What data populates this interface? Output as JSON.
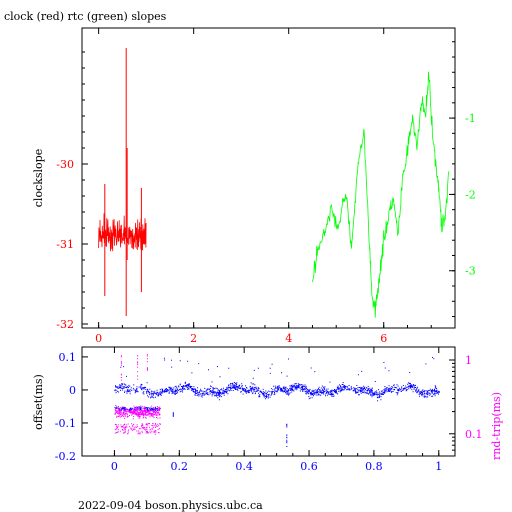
{
  "footer": "2022-09-04 boson.physics.ubc.ca",
  "colors": {
    "clock": "#ff0000",
    "rtc": "#00ff00",
    "offset": "#0000ff",
    "rndtrip": "#ff00ff",
    "frame": "#000000"
  },
  "chart_data": [
    {
      "type": "line",
      "title": "clock (red) rtc (green) slopes",
      "ylabel": "clockslope",
      "xlim": [
        -0.35,
        7.5
      ],
      "ylim": [
        -32.05,
        -28.3
      ],
      "xticks": [
        0,
        2,
        4,
        6
      ],
      "xtick_labels": [
        "0",
        "2",
        "4",
        "6"
      ],
      "yticks": [
        -30,
        -31,
        -32
      ],
      "ytick_labels": [
        "-30",
        "-31",
        "-32"
      ],
      "y2lim": [
        -3.75,
        0.18
      ],
      "y2ticks": [
        -1,
        -2,
        -3
      ],
      "y2tick_labels": [
        "-1",
        "-2",
        "-3"
      ],
      "grid": false,
      "series": [
        {
          "color": "#ff0000",
          "axis": "left",
          "x_range": [
            0.0,
            1.0
          ],
          "baseline": -30.9,
          "spikes": [
            [
              0.58,
              -28.55,
              -31.9
            ],
            [
              0.13,
              -30.25,
              -31.65
            ],
            [
              0.9,
              -30.3,
              -31.6
            ],
            [
              0.6,
              -29.8,
              -31.2
            ]
          ]
        },
        {
          "color": "#00ff00",
          "axis": "right",
          "x": [
            4.5,
            4.62,
            4.75,
            4.9,
            5.05,
            5.2,
            5.32,
            5.45,
            5.58,
            5.68,
            5.75,
            5.82,
            5.9,
            6.0,
            6.1,
            6.2,
            6.3,
            6.4,
            6.5,
            6.6,
            6.7,
            6.8,
            6.88,
            6.95,
            7.05,
            7.15,
            7.22,
            7.3,
            7.38
          ],
          "y": [
            -3.1,
            -2.7,
            -2.5,
            -2.2,
            -2.45,
            -1.95,
            -2.7,
            -1.7,
            -1.15,
            -2.4,
            -3.3,
            -3.55,
            -3.1,
            -2.6,
            -2.3,
            -2.05,
            -2.55,
            -1.8,
            -1.45,
            -1.0,
            -1.35,
            -0.8,
            -0.95,
            -0.45,
            -1.35,
            -1.85,
            -2.45,
            -2.25,
            -1.6
          ]
        }
      ]
    },
    {
      "type": "scatter",
      "ylabel": "offset(ms)",
      "y2label": "rnd-trip(ms)",
      "xlim": [
        -0.1,
        1.05
      ],
      "ylim": [
        -0.2,
        0.13
      ],
      "xticks": [
        0,
        0.2,
        0.4,
        0.6,
        0.8,
        1
      ],
      "xtick_labels": [
        "0",
        "0.2",
        "0.4",
        "0.6",
        "0.8",
        "1"
      ],
      "yticks": [
        0.1,
        0,
        -0.1,
        -0.2
      ],
      "ytick_labels": [
        "0.1",
        "0",
        "-0.1",
        "-0.2"
      ],
      "y2scale": "log",
      "y2lim": [
        0.05,
        1.5
      ],
      "y2ticks": [
        1,
        0.1
      ],
      "y2tick_labels": [
        "1",
        "0.1"
      ],
      "series": [
        {
          "color": "#0000ff",
          "axis": "left",
          "x_range": [
            0,
            1
          ],
          "y_center": 0.0,
          "y_spread": 0.022
        },
        {
          "color": "#ff00ff",
          "axis": "right",
          "x_range": [
            0,
            0.14
          ],
          "y_center": 0.2,
          "y_spread": 0.06
        }
      ]
    }
  ]
}
